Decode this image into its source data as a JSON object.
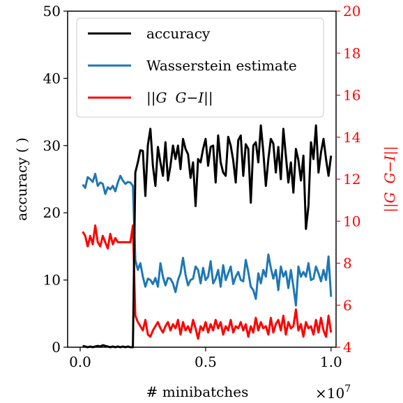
{
  "chart_data": {
    "type": "line",
    "colors": {
      "accuracy": "#000000",
      "wasserstein": "#1f77b4",
      "gg": "#ff0000",
      "right_axis": "#ff0000"
    },
    "x_multiplier_label": "×10",
    "x_multiplier_exponent": "7",
    "xlabel": "# minibatches",
    "ylabel_left": "accuracy (  )",
    "ylabel_right_parts": {
      "left_bars": "||",
      "g1": "G",
      "g2": "G",
      "minus_i": "−I",
      "right_bars": "||"
    },
    "xlim": [
      -0.05,
      1.02
    ],
    "ylim_left": [
      0,
      50
    ],
    "ylim_right": [
      4,
      20
    ],
    "xticks": [
      0.0,
      0.5,
      1.0
    ],
    "xtick_labels": [
      "0.0",
      "0.5",
      "1.0"
    ],
    "yticks_left": [
      0,
      10,
      20,
      30,
      40,
      50
    ],
    "ytick_labels_left": [
      "0",
      "10",
      "20",
      "30",
      "40",
      "50"
    ],
    "yticks_right": [
      4,
      6,
      8,
      10,
      12,
      14,
      16,
      18,
      20
    ],
    "ytick_labels_right": [
      "4",
      "6",
      "8",
      "10",
      "12",
      "14",
      "16",
      "18",
      "20"
    ],
    "legend": {
      "placement": "upper-left",
      "entries": [
        {
          "label": "accuracy",
          "series": "accuracy"
        },
        {
          "label": "Wasserstein estimate",
          "series": "wasserstein"
        },
        {
          "label_parts": {
            "bars_l": "||",
            "g1": "G",
            "g2": "G",
            "minus_i": "−I",
            "bars_r": "||"
          },
          "series": "gg"
        }
      ]
    },
    "series": [
      {
        "key": "accuracy",
        "axis": "left",
        "name": "accuracy",
        "x": [
          0.01,
          0.02,
          0.03,
          0.04,
          0.05,
          0.06,
          0.07,
          0.08,
          0.09,
          0.1,
          0.11,
          0.12,
          0.13,
          0.14,
          0.15,
          0.16,
          0.17,
          0.18,
          0.19,
          0.2,
          0.21,
          0.22,
          0.23,
          0.24,
          0.25,
          0.26,
          0.27,
          0.28,
          0.29,
          0.3,
          0.31,
          0.32,
          0.33,
          0.34,
          0.35,
          0.36,
          0.37,
          0.38,
          0.39,
          0.4,
          0.41,
          0.42,
          0.43,
          0.44,
          0.45,
          0.46,
          0.47,
          0.48,
          0.49,
          0.5,
          0.51,
          0.52,
          0.53,
          0.54,
          0.55,
          0.56,
          0.57,
          0.58,
          0.59,
          0.6,
          0.61,
          0.62,
          0.63,
          0.64,
          0.65,
          0.66,
          0.67,
          0.68,
          0.69,
          0.7,
          0.71,
          0.72,
          0.73,
          0.74,
          0.75,
          0.76,
          0.77,
          0.78,
          0.79,
          0.8,
          0.81,
          0.82,
          0.83,
          0.84,
          0.85,
          0.86,
          0.87,
          0.88,
          0.89,
          0.9,
          0.91,
          0.92,
          0.93,
          0.94,
          0.95,
          0.96,
          0.97,
          0.98,
          0.99,
          1.0
        ],
        "y": [
          0.2,
          0.1,
          0.0,
          0.1,
          0.0,
          0.1,
          0.2,
          0.1,
          0.3,
          0.2,
          0.1,
          0.0,
          0.1,
          0.0,
          0.1,
          0.0,
          0.1,
          0.0,
          0.1,
          0.0,
          0.0,
          26.0,
          27.5,
          29.3,
          29.2,
          22.5,
          30.1,
          32.5,
          27.0,
          24.0,
          29.8,
          27.5,
          25.5,
          30.5,
          24.8,
          27.0,
          30.0,
          28.0,
          30.0,
          26.5,
          31.0,
          29.5,
          28.7,
          25.2,
          27.5,
          21.0,
          28.0,
          27.5,
          29.5,
          31.0,
          27.0,
          29.8,
          30.0,
          24.5,
          31.5,
          27.5,
          26.0,
          25.5,
          31.3,
          30.0,
          27.8,
          24.5,
          30.8,
          31.5,
          25.5,
          30.2,
          29.5,
          21.5,
          30.0,
          30.5,
          27.5,
          33.0,
          29.0,
          24.0,
          28.0,
          31.0,
          30.3,
          26.0,
          29.8,
          25.0,
          32.5,
          28.5,
          24.5,
          27.5,
          23.0,
          29.5,
          27.8,
          24.8,
          28.5,
          17.6,
          21.0,
          30.5,
          28.0,
          33.0,
          26.0,
          29.0,
          31.0,
          28.0,
          25.5,
          28.5
        ],
        "y_note": ""
      },
      {
        "key": "wasserstein",
        "axis": "left",
        "name": "Wasserstein estimate",
        "x": [
          0.01,
          0.02,
          0.03,
          0.04,
          0.05,
          0.06,
          0.07,
          0.08,
          0.09,
          0.1,
          0.11,
          0.12,
          0.13,
          0.14,
          0.15,
          0.16,
          0.17,
          0.18,
          0.19,
          0.2,
          0.21,
          0.22,
          0.23,
          0.24,
          0.25,
          0.26,
          0.27,
          0.28,
          0.29,
          0.3,
          0.31,
          0.32,
          0.33,
          0.34,
          0.35,
          0.36,
          0.37,
          0.38,
          0.39,
          0.4,
          0.41,
          0.42,
          0.43,
          0.44,
          0.45,
          0.46,
          0.47,
          0.48,
          0.49,
          0.5,
          0.51,
          0.52,
          0.53,
          0.54,
          0.55,
          0.56,
          0.57,
          0.58,
          0.59,
          0.6,
          0.61,
          0.62,
          0.63,
          0.64,
          0.65,
          0.66,
          0.67,
          0.68,
          0.69,
          0.7,
          0.71,
          0.72,
          0.73,
          0.74,
          0.75,
          0.76,
          0.77,
          0.78,
          0.79,
          0.8,
          0.81,
          0.82,
          0.83,
          0.84,
          0.85,
          0.86,
          0.87,
          0.88,
          0.89,
          0.9,
          0.91,
          0.92,
          0.93,
          0.94,
          0.95,
          0.96,
          0.97,
          0.98,
          0.99,
          1.0
        ],
        "y": [
          24.2,
          23.7,
          25.3,
          25.0,
          24.6,
          25.8,
          24.0,
          24.5,
          24.3,
          22.8,
          23.8,
          23.5,
          24.0,
          23.2,
          24.5,
          25.5,
          24.8,
          24.3,
          24.6,
          24.5,
          24.0,
          13.0,
          11.5,
          12.5,
          10.5,
          9.0,
          10.2,
          10.0,
          9.4,
          10.3,
          9.0,
          12.5,
          10.5,
          9.2,
          10.3,
          10.2,
          9.5,
          8.2,
          10.0,
          11.0,
          13.3,
          10.8,
          9.2,
          10.0,
          10.2,
          12.0,
          11.5,
          9.5,
          11.8,
          10.0,
          10.5,
          12.8,
          9.5,
          10.2,
          11.5,
          9.0,
          12.2,
          10.0,
          11.0,
          12.0,
          9.4,
          10.5,
          11.2,
          10.0,
          9.8,
          13.0,
          11.2,
          9.0,
          8.5,
          7.2,
          11.0,
          9.5,
          11.5,
          10.5,
          13.8,
          11.8,
          10.2,
          11.5,
          8.5,
          12.0,
          10.5,
          11.3,
          8.8,
          11.5,
          9.0,
          6.2,
          12.0,
          10.5,
          11.2,
          10.5,
          12.5,
          10.0,
          10.2,
          12.0,
          11.0,
          9.8,
          11.5,
          10.0,
          13.5,
          7.5
        ],
        "y_note": ""
      },
      {
        "key": "gg",
        "axis": "right",
        "name": "||G G−I||",
        "x": [
          0.01,
          0.02,
          0.03,
          0.04,
          0.05,
          0.06,
          0.07,
          0.08,
          0.09,
          0.1,
          0.11,
          0.12,
          0.13,
          0.14,
          0.15,
          0.16,
          0.17,
          0.18,
          0.19,
          0.2,
          0.21,
          0.22,
          0.23,
          0.24,
          0.25,
          0.26,
          0.27,
          0.28,
          0.29,
          0.3,
          0.31,
          0.32,
          0.33,
          0.34,
          0.35,
          0.36,
          0.37,
          0.38,
          0.39,
          0.4,
          0.41,
          0.42,
          0.43,
          0.44,
          0.45,
          0.46,
          0.47,
          0.48,
          0.49,
          0.5,
          0.51,
          0.52,
          0.53,
          0.54,
          0.55,
          0.56,
          0.57,
          0.58,
          0.59,
          0.6,
          0.61,
          0.62,
          0.63,
          0.64,
          0.65,
          0.66,
          0.67,
          0.68,
          0.69,
          0.7,
          0.71,
          0.72,
          0.73,
          0.74,
          0.75,
          0.76,
          0.77,
          0.78,
          0.79,
          0.8,
          0.81,
          0.82,
          0.83,
          0.84,
          0.85,
          0.86,
          0.87,
          0.88,
          0.89,
          0.9,
          0.91,
          0.92,
          0.93,
          0.94,
          0.95,
          0.96,
          0.97,
          0.98,
          0.99,
          1.0
        ],
        "y": [
          9.5,
          9.3,
          8.8,
          9.3,
          8.9,
          9.8,
          9.0,
          8.8,
          9.3,
          9.0,
          8.7,
          9.4,
          8.9,
          9.2,
          9.0,
          9.0,
          9.0,
          9.0,
          9.0,
          9.0,
          9.8,
          5.5,
          5.2,
          5.0,
          4.8,
          5.3,
          4.6,
          4.5,
          4.8,
          5.0,
          5.2,
          4.9,
          4.7,
          5.0,
          5.2,
          4.8,
          5.1,
          4.9,
          5.3,
          4.6,
          5.2,
          4.8,
          5.0,
          4.7,
          5.3,
          4.9,
          4.4,
          5.0,
          4.8,
          5.2,
          4.7,
          5.1,
          4.8,
          5.3,
          4.9,
          5.2,
          4.6,
          5.0,
          4.8,
          5.3,
          4.7,
          5.0,
          4.9,
          5.2,
          4.8,
          5.1,
          4.5,
          5.0,
          4.7,
          5.4,
          4.8,
          5.2,
          4.9,
          5.0,
          4.6,
          5.4,
          4.7,
          5.1,
          5.3,
          4.8,
          5.5,
          4.6,
          5.2,
          4.9,
          5.0,
          5.8,
          4.8,
          5.1,
          4.5,
          5.2,
          4.9,
          5.0,
          4.6,
          5.3,
          4.7,
          5.4,
          4.8,
          4.5,
          5.5,
          4.7
        ],
        "y_note": ""
      }
    ]
  }
}
